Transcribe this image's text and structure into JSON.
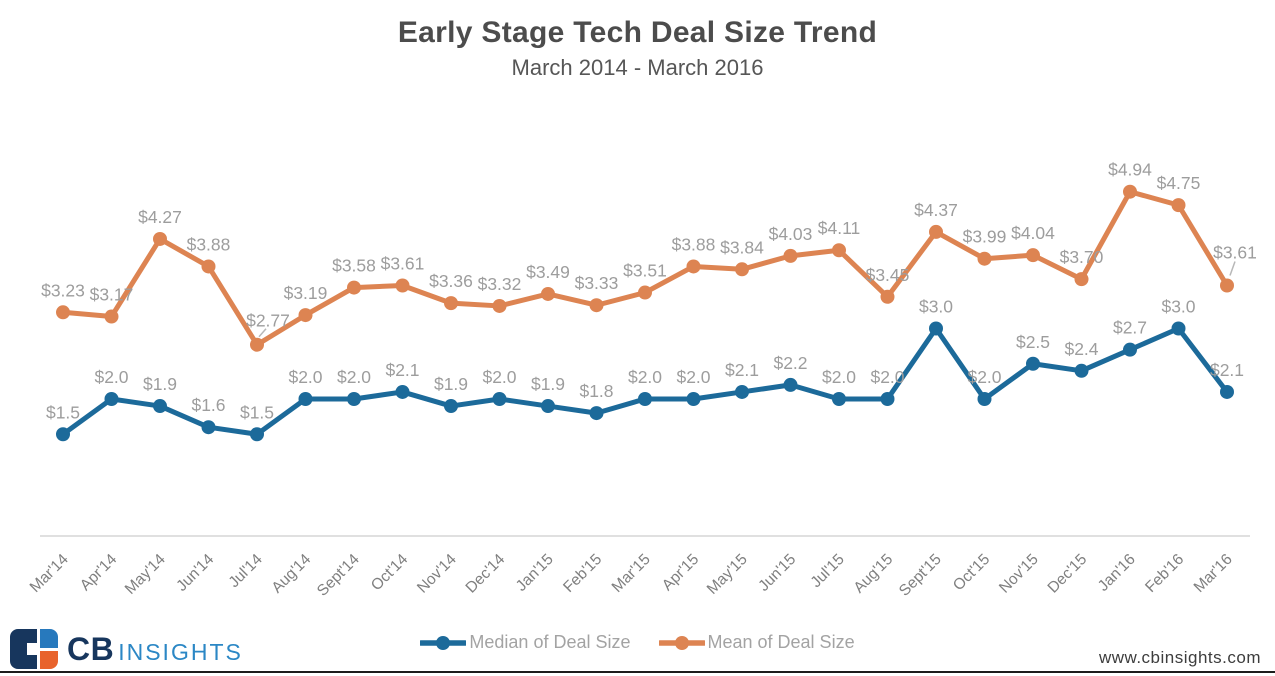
{
  "header": {
    "title": "Early Stage Tech Deal Size Trend",
    "subtitle": "March 2014 - March 2016"
  },
  "chart_data": {
    "type": "line",
    "title": "Early Stage Tech Deal Size Trend",
    "subtitle": "March 2014 - March 2016",
    "categories": [
      "Mar'14",
      "Apr'14",
      "May'14",
      "Jun'14",
      "Jul'14",
      "Aug'14",
      "Sept'14",
      "Oct'14",
      "Nov'14",
      "Dec'14",
      "Jan'15",
      "Feb'15",
      "Mar'15",
      "Apr'15",
      "May'15",
      "Jun'15",
      "Jul'15",
      "Aug'15",
      "Sept'15",
      "Oct'15",
      "Nov'15",
      "Dec'15",
      "Jan'16",
      "Feb'16",
      "Mar'16"
    ],
    "series": [
      {
        "name": "Median of Deal Size",
        "color": "#1c6a9a",
        "values": [
          1.5,
          2.0,
          1.9,
          1.6,
          1.5,
          2.0,
          2.0,
          2.1,
          1.9,
          2.0,
          1.9,
          1.8,
          2.0,
          2.0,
          2.1,
          2.2,
          2.0,
          2.0,
          3.0,
          2.0,
          2.5,
          2.4,
          2.7,
          3.0,
          2.1
        ],
        "labels": [
          "$1.5",
          "$2.0",
          "$1.9",
          "$1.6",
          "$1.5",
          "$2.0",
          "$2.0",
          "$2.1",
          "$1.9",
          "$2.0",
          "$1.9",
          "$1.8",
          "$2.0",
          "$2.0",
          "$2.1",
          "$2.2",
          "$2.0",
          "$2.0",
          "$3.0",
          "$2.0",
          "$2.5",
          "$2.4",
          "$2.7",
          "$3.0",
          "$2.1"
        ]
      },
      {
        "name": "Mean of Deal Size",
        "color": "#dd8452",
        "values": [
          3.23,
          3.17,
          4.27,
          3.88,
          2.77,
          3.19,
          3.58,
          3.61,
          3.36,
          3.32,
          3.49,
          3.33,
          3.51,
          3.88,
          3.84,
          4.03,
          4.11,
          3.45,
          4.37,
          3.99,
          4.04,
          3.7,
          4.94,
          4.75,
          3.61
        ],
        "labels": [
          "$3.23",
          "$3.17",
          "$4.27",
          "$3.88",
          "$2.77",
          "$3.19",
          "$3.58",
          "$3.61",
          "$3.36",
          "$3.32",
          "$3.49",
          "$3.33",
          "$3.51",
          "$3.88",
          "$3.84",
          "$4.03",
          "$4.11",
          "$3.45",
          "$4.37",
          "$3.99",
          "$4.04",
          "$3.70",
          "$4.94",
          "$4.75",
          "$3.61"
        ]
      }
    ],
    "ylim": [
      0,
      5.5
    ],
    "xlabel": "",
    "ylabel": "",
    "grid": false,
    "legend_position": "bottom"
  },
  "footer": {
    "brand": {
      "cb": "CB",
      "insights": "INSIGHTS"
    },
    "website": "www.cbinsights.com"
  },
  "colors": {
    "median_line": "#1c6a9a",
    "mean_line": "#dd8452",
    "title_text": "#4c4c4c",
    "data_label": "#9d9d9d",
    "axis_label": "#7f7f7f",
    "axis_line": "#d6d6d6",
    "leader_line": "#b8b8b8",
    "legend_text": "#a3a3a3",
    "logo_navy": "#17365d",
    "logo_blue": "#2779bd",
    "logo_orange": "#e8632c"
  }
}
